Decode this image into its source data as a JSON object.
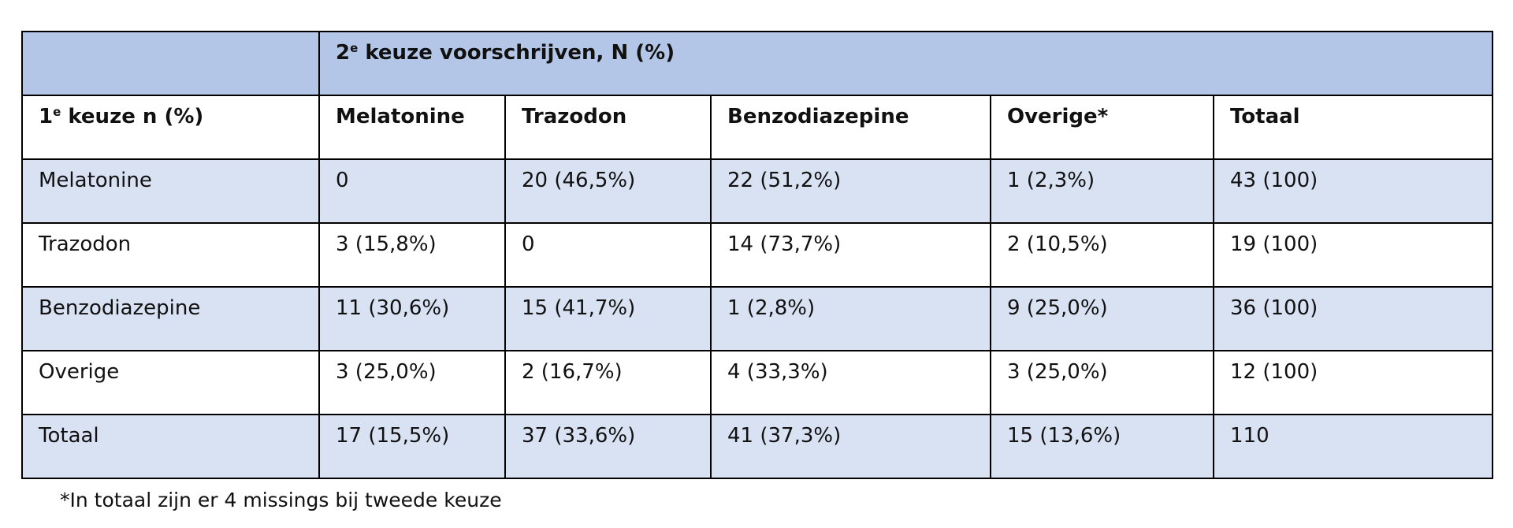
{
  "title": {
    "num": "2",
    "sup": "e",
    "rest": " keuze voorschrijven, N (%)"
  },
  "row_header": {
    "num": "1",
    "sup": "e",
    "rest": " keuze n (%)"
  },
  "columns": [
    "Melatonine",
    "Trazodon",
    "Benzodiazepine",
    "Overige*",
    "Totaal"
  ],
  "rows": [
    [
      "Melatonine",
      "0",
      "20 (46,5%)",
      "22 (51,2%)",
      "1 (2,3%)",
      "43 (100)"
    ],
    [
      "Trazodon",
      "3 (15,8%)",
      "0",
      "14 (73,7%)",
      "2 (10,5%)",
      "19 (100)"
    ],
    [
      "Benzodiazepine",
      "11 (30,6%)",
      "15 (41,7%)",
      "1 (2,8%)",
      "9 (25,0%)",
      "36 (100)"
    ],
    [
      "Overige",
      "3 (25,0%)",
      "2 (16,7%)",
      "4 (33,3%)",
      "3 (25,0%)",
      "12 (100)"
    ],
    [
      "Totaal",
      "17 (15,5%)",
      "37 (33,6%)",
      "41 (37,3%)",
      "15 (13,6%)",
      "110"
    ]
  ],
  "footnote": "*In totaal zijn er 4 missings bij tweede keuze"
}
